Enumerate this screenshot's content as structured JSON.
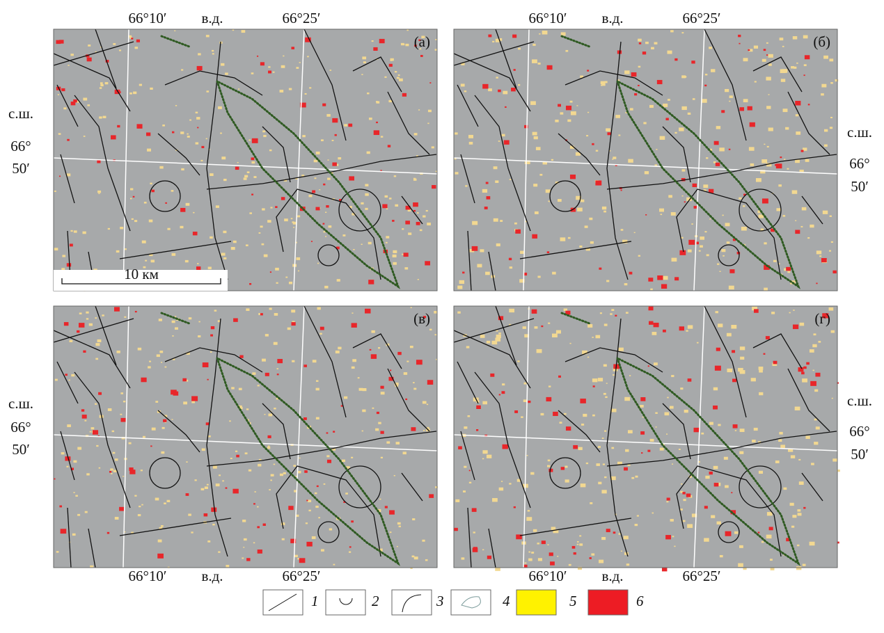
{
  "panels": [
    {
      "label": "(а)",
      "lon_labels": [
        "66°10′",
        "в.д.",
        "66°25′"
      ],
      "lat_labels": [
        "с.ш.",
        "66°",
        "50′"
      ],
      "scale_label": "10 км"
    },
    {
      "label": "(б)",
      "lon_labels": [
        "66°10′",
        "в.д.",
        "66°25′"
      ],
      "lat_labels": [
        "с.ш.",
        "66°",
        "50′"
      ]
    },
    {
      "label": "(в)",
      "lon_labels": [
        "66°10′",
        "в.д.",
        "66°25′"
      ],
      "lat_labels": [
        "с.ш.",
        "66°",
        "50′"
      ]
    },
    {
      "label": "(г)",
      "lon_labels": [
        "66°10′",
        "в.д.",
        "66°25′"
      ],
      "lat_labels": [
        "с.ш.",
        "66°",
        "50′"
      ]
    }
  ],
  "legend": [
    "1",
    "2",
    "3",
    "4",
    "5",
    "6"
  ]
}
